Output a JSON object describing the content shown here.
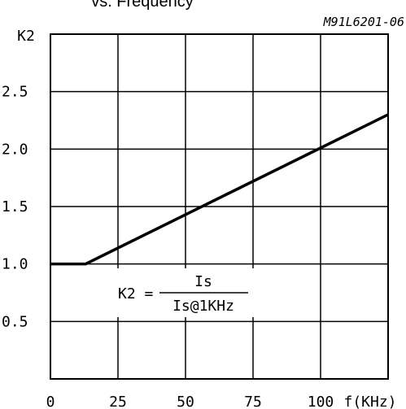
{
  "chart_data": {
    "type": "line",
    "title": "vs. Frequency",
    "figure_code": "M91L6201-06",
    "ylabel": "K2",
    "xlabel": "f(KHz)",
    "xlim": [
      0,
      125
    ],
    "ylim": [
      0,
      3.0
    ],
    "x_ticks": [
      0,
      25,
      50,
      75,
      100
    ],
    "x_tick_labels": [
      "0",
      "25",
      "50",
      "75",
      "100"
    ],
    "y_ticks": [
      0.5,
      1.0,
      1.5,
      2.0,
      2.5
    ],
    "y_tick_labels": [
      "0.5",
      "1.0",
      "1.5",
      "2.0",
      "2.5"
    ],
    "grid": true,
    "series": [
      {
        "x": [
          0,
          13,
          125
        ],
        "y": [
          1.0,
          1.0,
          2.3
        ]
      }
    ],
    "annotation": {
      "lhs": "K2 =",
      "numerator": "Is",
      "denominator": "Is@1KHz"
    },
    "colors": {
      "line": "#000000",
      "grid": "#000000",
      "background": "#ffffff"
    }
  }
}
